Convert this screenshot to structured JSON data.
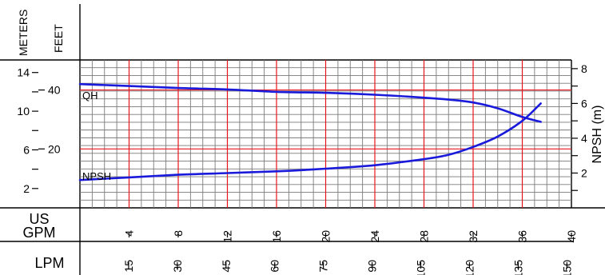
{
  "labels": {
    "meters": "METERS",
    "feet": "FEET",
    "us_gpm_line1": "US",
    "us_gpm_line2": "GPM",
    "lpm": "LPM",
    "npsh_axis": "NPSH (m)",
    "qh_curve": "QH",
    "npsh_curve": "NPSH"
  },
  "colors": {
    "curve": "#1a1adb",
    "major_grid": "#e8141c",
    "minor_grid": "#7a7a7a",
    "axis": "#000000"
  },
  "chart_data": {
    "type": "line",
    "title": "",
    "grid": true,
    "x_primary": {
      "label": "US GPM",
      "range": [
        0,
        40
      ],
      "ticks": [
        "4",
        "8",
        "12",
        "16",
        "20",
        "24",
        "28",
        "32",
        "36",
        "40"
      ]
    },
    "x_secondary": {
      "label": "LPM",
      "ticks": [
        "15",
        "30",
        "45",
        "60",
        "75",
        "90",
        "105",
        "120",
        "135",
        "150"
      ]
    },
    "y_left_meters": {
      "label": "METERS",
      "range": [
        0,
        15.3
      ],
      "ticks": [
        "2",
        "6",
        "10",
        "14"
      ]
    },
    "y_left_feet": {
      "label": "FEET",
      "ticks": [
        "20",
        "40"
      ]
    },
    "y_right": {
      "label": "NPSH (m)",
      "range": [
        0,
        8.5
      ],
      "ticks": [
        "2",
        "4",
        "6",
        "8"
      ]
    },
    "series": [
      {
        "name": "QH",
        "axis": "meters",
        "x": [
          0,
          4,
          8,
          12,
          16,
          20,
          24,
          28,
          30,
          32,
          34,
          36,
          37.5
        ],
        "y": [
          12.8,
          12.6,
          12.4,
          12.25,
          12.0,
          11.9,
          11.7,
          11.4,
          11.2,
          10.9,
          10.3,
          9.4,
          8.9
        ]
      },
      {
        "name": "NPSH",
        "axis": "npsh",
        "x": [
          0,
          4,
          8,
          12,
          16,
          20,
          24,
          28,
          30,
          32,
          34,
          36,
          37.5
        ],
        "y": [
          1.6,
          1.75,
          1.9,
          2.0,
          2.1,
          2.25,
          2.45,
          2.8,
          3.05,
          3.5,
          4.1,
          5.0,
          6.0
        ]
      }
    ]
  }
}
